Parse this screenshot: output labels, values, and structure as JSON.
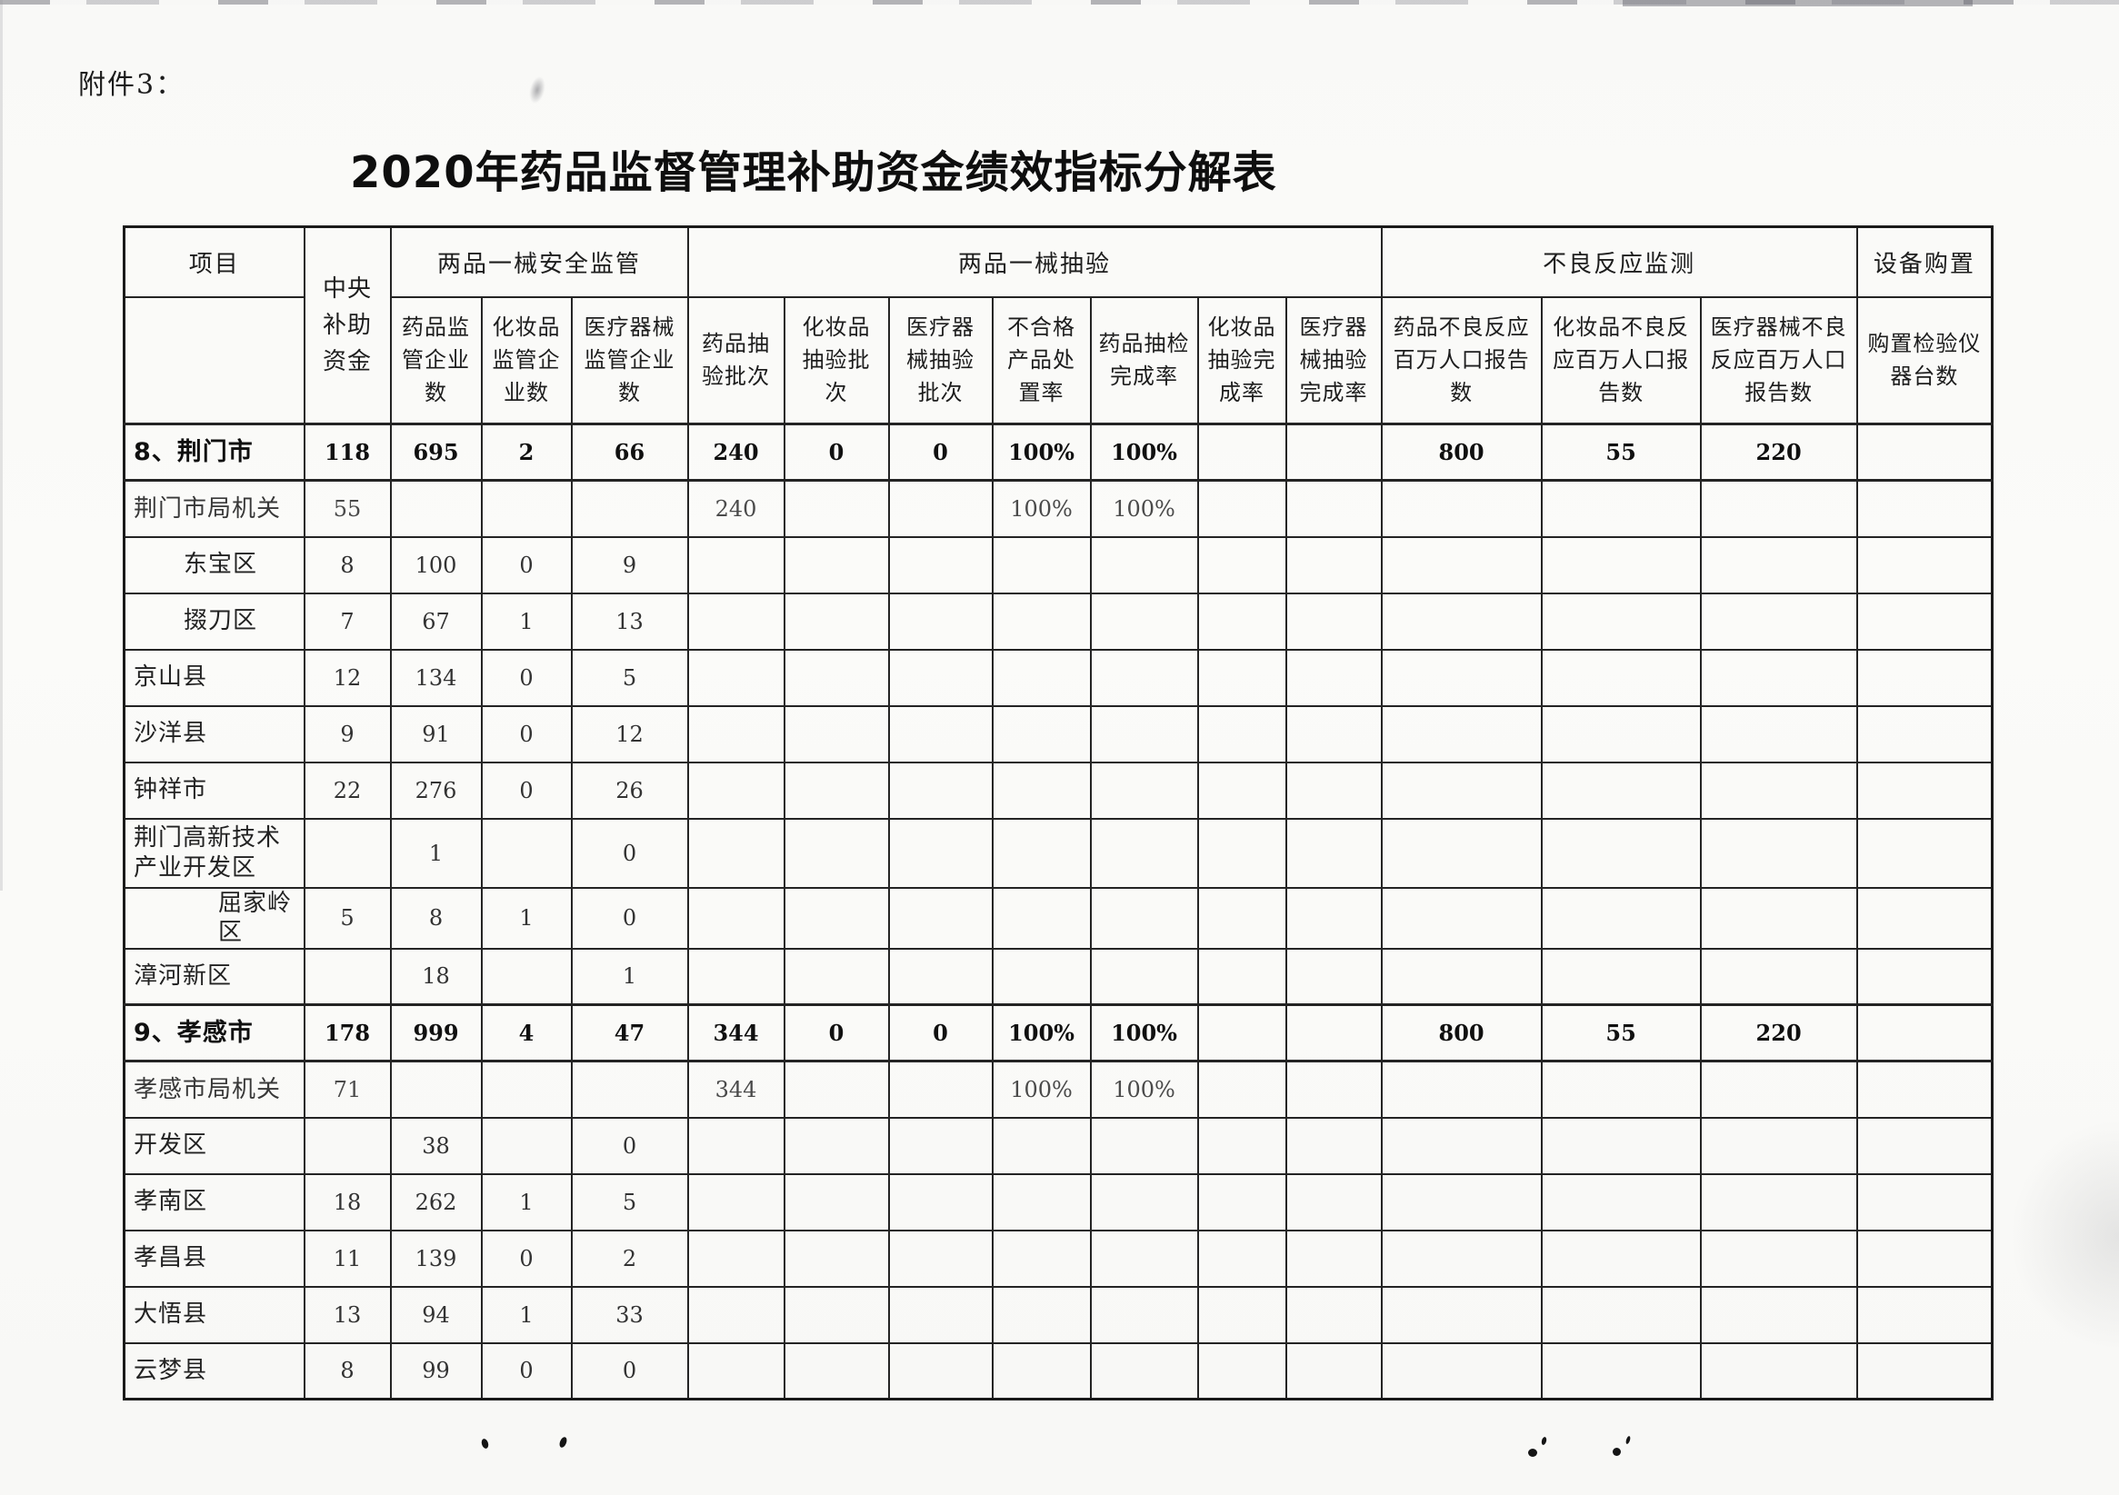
{
  "page": {
    "attachment_label": "附件3：",
    "title": "2020年药品监督管理补助资金绩效指标分解表"
  },
  "colors": {
    "paper": "#f9f9f7",
    "line": "#242424",
    "text": "#1d1d1d"
  },
  "table": {
    "corner_header": "项目",
    "central_fund_header": "中央补助资金",
    "groups": [
      {
        "label": "两品一械安全监管",
        "colspan": 3
      },
      {
        "label": "两品一械抽验",
        "colspan": 7
      },
      {
        "label": "不良反应监测",
        "colspan": 3
      },
      {
        "label": "设备购置",
        "colspan": 1
      }
    ],
    "sub_headers": [
      "药品监管企业数",
      "化妆品监管企业数",
      "医疗器械监管企业数",
      "药品抽验批次",
      "化妆品抽验批次",
      "医疗器械抽验批次",
      "不合格产品处置率",
      "药品抽检完成率",
      "化妆品抽验完成率",
      "医疗器械抽验完成率",
      "药品不良反应百万人口报告数",
      "化妆品不良反应百万人口报告数",
      "医疗器械不良反应百万人口报告数",
      "购置检验仪器台数"
    ],
    "rows": [
      {
        "label": "8、荆门市",
        "style": "city",
        "values": [
          "118",
          "695",
          "2",
          "66",
          "240",
          "0",
          "0",
          "100%",
          "100%",
          "",
          "",
          "800",
          "55",
          "220",
          ""
        ]
      },
      {
        "label": "荆门市局机关",
        "style": "plain faded",
        "values": [
          "55",
          "",
          "",
          "",
          "240",
          "",
          "",
          "100%",
          "100%",
          "",
          "",
          "",
          "",
          "",
          ""
        ]
      },
      {
        "label": "东宝区",
        "style": "indent",
        "values": [
          "8",
          "100",
          "0",
          "9",
          "",
          "",
          "",
          "",
          "",
          "",
          "",
          "",
          "",
          "",
          ""
        ]
      },
      {
        "label": "掇刀区",
        "style": "indent",
        "values": [
          "7",
          "67",
          "1",
          "13",
          "",
          "",
          "",
          "",
          "",
          "",
          "",
          "",
          "",
          "",
          ""
        ]
      },
      {
        "label": "京山县",
        "style": "plain",
        "values": [
          "12",
          "134",
          "0",
          "5",
          "",
          "",
          "",
          "",
          "",
          "",
          "",
          "",
          "",
          "",
          ""
        ]
      },
      {
        "label": "沙洋县",
        "style": "plain",
        "values": [
          "9",
          "91",
          "0",
          "12",
          "",
          "",
          "",
          "",
          "",
          "",
          "",
          "",
          "",
          "",
          ""
        ]
      },
      {
        "label": "钟祥市",
        "style": "plain",
        "values": [
          "22",
          "276",
          "0",
          "26",
          "",
          "",
          "",
          "",
          "",
          "",
          "",
          "",
          "",
          "",
          ""
        ]
      },
      {
        "label": "荆门高新技术产业开发区",
        "style": "plain tall",
        "values": [
          "",
          "1",
          "",
          "0",
          "",
          "",
          "",
          "",
          "",
          "",
          "",
          "",
          "",
          "",
          ""
        ]
      },
      {
        "label": "屈家岭区",
        "style": "indent2",
        "values": [
          "5",
          "8",
          "1",
          "0",
          "",
          "",
          "",
          "",
          "",
          "",
          "",
          "",
          "",
          "",
          ""
        ]
      },
      {
        "label": "漳河新区",
        "style": "plain",
        "values": [
          "",
          "18",
          "",
          "1",
          "",
          "",
          "",
          "",
          "",
          "",
          "",
          "",
          "",
          "",
          ""
        ]
      },
      {
        "label": "9、孝感市",
        "style": "city",
        "values": [
          "178",
          "999",
          "4",
          "47",
          "344",
          "0",
          "0",
          "100%",
          "100%",
          "",
          "",
          "800",
          "55",
          "220",
          ""
        ]
      },
      {
        "label": "孝感市局机关",
        "style": "plain faded",
        "values": [
          "71",
          "",
          "",
          "",
          "344",
          "",
          "",
          "100%",
          "100%",
          "",
          "",
          "",
          "",
          "",
          ""
        ]
      },
      {
        "label": "开发区",
        "style": "plain",
        "values": [
          "",
          "38",
          "",
          "0",
          "",
          "",
          "",
          "",
          "",
          "",
          "",
          "",
          "",
          "",
          ""
        ]
      },
      {
        "label": "孝南区",
        "style": "plain",
        "values": [
          "18",
          "262",
          "1",
          "5",
          "",
          "",
          "",
          "",
          "",
          "",
          "",
          "",
          "",
          "",
          ""
        ]
      },
      {
        "label": "孝昌县",
        "style": "plain",
        "values": [
          "11",
          "139",
          "0",
          "2",
          "",
          "",
          "",
          "",
          "",
          "",
          "",
          "",
          "",
          "",
          ""
        ]
      },
      {
        "label": "大悟县",
        "style": "plain",
        "values": [
          "13",
          "94",
          "1",
          "33",
          "",
          "",
          "",
          "",
          "",
          "",
          "",
          "",
          "",
          "",
          ""
        ]
      },
      {
        "label": "云梦县",
        "style": "plain",
        "values": [
          "8",
          "99",
          "0",
          "0",
          "",
          "",
          "",
          "",
          "",
          "",
          "",
          "",
          "",
          "",
          ""
        ]
      }
    ]
  }
}
